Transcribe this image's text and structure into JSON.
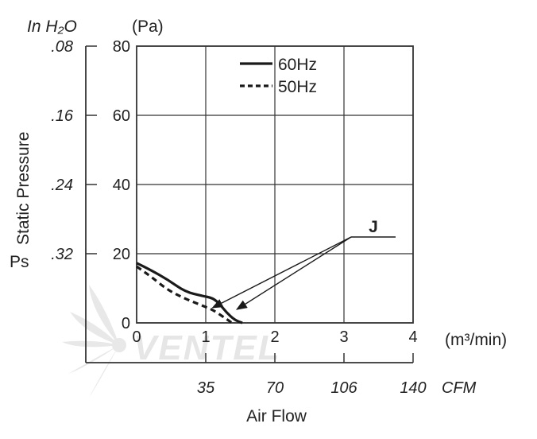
{
  "chart_data": {
    "type": "line",
    "xlabel": "Air Flow",
    "ylabel": "Static Pressure",
    "ylabel_symbol": "Ps",
    "x_unit": "(m³/min)",
    "y_unit": "(Pa)",
    "secondary_x_unit": "CFM",
    "secondary_y_unit": "In H₂O",
    "xlim": [
      0,
      4
    ],
    "ylim": [
      0,
      80
    ],
    "x_ticks": [
      "0",
      "1",
      "2",
      "3",
      "4"
    ],
    "y_ticks": [
      "0",
      "20",
      "40",
      "60",
      "80"
    ],
    "secondary_x_ticks": [
      "35",
      "70",
      "106",
      "140"
    ],
    "secondary_y_ticks": [
      ".08",
      ".16",
      ".24",
      ".32"
    ],
    "grid": true,
    "legend_position": "top-right",
    "series": [
      {
        "name": "60Hz",
        "style": "solid",
        "x": [
          0,
          0.2,
          0.45,
          0.7,
          0.95,
          1.1,
          1.2,
          1.3,
          1.42,
          1.53
        ],
        "y": [
          17.3,
          15.3,
          12.5,
          9.0,
          7.8,
          7.2,
          5.5,
          3.0,
          0.8,
          0
        ]
      },
      {
        "name": "50Hz",
        "style": "dashed",
        "x": [
          0,
          0.2,
          0.45,
          0.7,
          0.95,
          1.1,
          1.25,
          1.38
        ],
        "y": [
          16.3,
          13.5,
          9.5,
          7.0,
          5.0,
          3.8,
          1.8,
          0
        ]
      }
    ],
    "annotation": {
      "label": "J",
      "targets": [
        [
          1.1,
          4.4
        ],
        [
          1.45,
          3.9
        ]
      ]
    },
    "colors": {
      "line": "#1a1a1a",
      "grid": "#333333",
      "watermark": "#e6e6e6"
    }
  },
  "watermark": {
    "text": "VENTEL"
  }
}
